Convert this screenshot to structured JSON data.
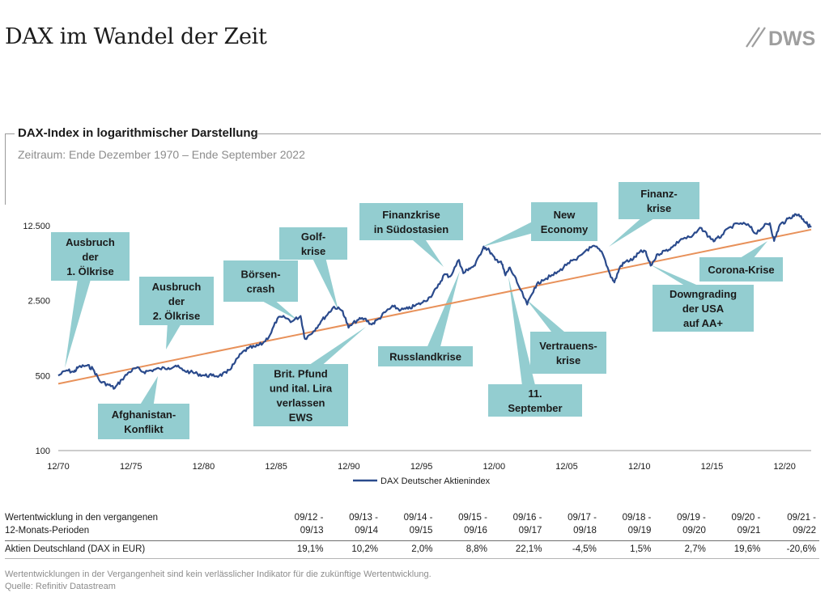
{
  "page": {
    "title": "DAX im Wandel der Zeit",
    "logo_text": "DWS",
    "logo_color": "#9e9e9e"
  },
  "chart_header": {
    "title": "DAX-Index in logarithmischer Darstellung",
    "subtitle": "Zeitraum: Ende Dezember 1970 – Ende September 2022"
  },
  "chart_data": {
    "type": "line",
    "title": "DAX-Index in logarithmischer Darstellung",
    "y_scale": "log",
    "ylim": [
      100,
      12500
    ],
    "y_ticks": [
      {
        "value": 100,
        "label": "100"
      },
      {
        "value": 500,
        "label": "500"
      },
      {
        "value": 2500,
        "label": "2.500"
      },
      {
        "value": 12500,
        "label": "12.500"
      }
    ],
    "x_ticks": [
      "12/70",
      "12/75",
      "12/80",
      "12/85",
      "12/90",
      "12/95",
      "12/00",
      "12/05",
      "12/10",
      "12/15",
      "12/20"
    ],
    "xlim": [
      1970.92,
      2022.75
    ],
    "grid": false,
    "legend_position": "bottom-center",
    "colors": {
      "dax": "#2a4a8c",
      "trend": "#e8915a",
      "callout": "#93cdd0"
    },
    "series": [
      {
        "name": "DAX Deutscher Aktienindex",
        "points": [
          [
            1970.92,
            500
          ],
          [
            1971.5,
            560
          ],
          [
            1972.0,
            540
          ],
          [
            1972.3,
            600
          ],
          [
            1972.9,
            620
          ],
          [
            1973.3,
            580
          ],
          [
            1973.8,
            440
          ],
          [
            1974.4,
            410
          ],
          [
            1974.8,
            380
          ],
          [
            1975.3,
            460
          ],
          [
            1975.8,
            540
          ],
          [
            1976.3,
            590
          ],
          [
            1976.8,
            540
          ],
          [
            1977.3,
            560
          ],
          [
            1977.9,
            580
          ],
          [
            1978.5,
            590
          ],
          [
            1979.0,
            620
          ],
          [
            1979.5,
            560
          ],
          [
            1980.0,
            540
          ],
          [
            1980.5,
            520
          ],
          [
            1981.0,
            500
          ],
          [
            1981.5,
            500
          ],
          [
            1982.0,
            500
          ],
          [
            1982.5,
            530
          ],
          [
            1983.0,
            640
          ],
          [
            1983.5,
            800
          ],
          [
            1984.0,
            900
          ],
          [
            1984.5,
            930
          ],
          [
            1985.0,
            1000
          ],
          [
            1985.5,
            1200
          ],
          [
            1986.0,
            1700
          ],
          [
            1986.5,
            1750
          ],
          [
            1987.0,
            1600
          ],
          [
            1987.6,
            1800
          ],
          [
            1987.9,
            1100
          ],
          [
            1988.5,
            1300
          ],
          [
            1989.0,
            1600
          ],
          [
            1989.5,
            1900
          ],
          [
            1989.9,
            2200
          ],
          [
            1990.5,
            2000
          ],
          [
            1990.9,
            1400
          ],
          [
            1991.5,
            1650
          ],
          [
            1992.0,
            1700
          ],
          [
            1992.5,
            1500
          ],
          [
            1993.0,
            1700
          ],
          [
            1993.5,
            2000
          ],
          [
            1994.0,
            2200
          ],
          [
            1994.5,
            2050
          ],
          [
            1995.0,
            2100
          ],
          [
            1995.5,
            2250
          ],
          [
            1996.0,
            2400
          ],
          [
            1996.5,
            2700
          ],
          [
            1997.0,
            3300
          ],
          [
            1997.5,
            4400
          ],
          [
            1997.9,
            4200
          ],
          [
            1998.5,
            6000
          ],
          [
            1998.8,
            4500
          ],
          [
            1999.2,
            5000
          ],
          [
            1999.6,
            5300
          ],
          [
            2000.2,
            8000
          ],
          [
            2000.6,
            7300
          ],
          [
            2001.0,
            6000
          ],
          [
            2001.4,
            5800
          ],
          [
            2001.7,
            4300
          ],
          [
            2002.0,
            5100
          ],
          [
            2002.5,
            3700
          ],
          [
            2003.2,
            2300
          ],
          [
            2003.7,
            3300
          ],
          [
            2004.2,
            3900
          ],
          [
            2004.8,
            4200
          ],
          [
            2005.4,
            4700
          ],
          [
            2006.0,
            5600
          ],
          [
            2006.6,
            6000
          ],
          [
            2007.3,
            7500
          ],
          [
            2007.9,
            8000
          ],
          [
            2008.4,
            6800
          ],
          [
            2008.9,
            4400
          ],
          [
            2009.2,
            3700
          ],
          [
            2009.6,
            5200
          ],
          [
            2010.0,
            5800
          ],
          [
            2010.5,
            6100
          ],
          [
            2010.9,
            7000
          ],
          [
            2011.3,
            7300
          ],
          [
            2011.7,
            5300
          ],
          [
            2012.2,
            6800
          ],
          [
            2012.7,
            7300
          ],
          [
            2013.2,
            7900
          ],
          [
            2013.8,
            9400
          ],
          [
            2014.5,
            9800
          ],
          [
            2015.2,
            11900
          ],
          [
            2015.7,
            9900
          ],
          [
            2016.1,
            9000
          ],
          [
            2016.6,
            10200
          ],
          [
            2017.2,
            12200
          ],
          [
            2017.9,
            13200
          ],
          [
            2018.5,
            12400
          ],
          [
            2018.9,
            10600
          ],
          [
            2019.5,
            12400
          ],
          [
            2019.9,
            13200
          ],
          [
            2020.2,
            9000
          ],
          [
            2020.6,
            12800
          ],
          [
            2021.0,
            13800
          ],
          [
            2021.5,
            15600
          ],
          [
            2021.9,
            15900
          ],
          [
            2022.2,
            14400
          ],
          [
            2022.5,
            12800
          ],
          [
            2022.75,
            12100
          ]
        ]
      },
      {
        "name": "Trend",
        "points": [
          [
            1970.92,
            420
          ],
          [
            2022.75,
            11500
          ]
        ]
      }
    ]
  },
  "legend": {
    "label": "DAX Deutscher Aktienindex"
  },
  "annotations": [
    {
      "text": [
        "Ausbruch",
        "der",
        "1. Ölkrise"
      ]
    },
    {
      "text": [
        "Ausbruch",
        "der",
        "2. Ölkrise"
      ]
    },
    {
      "text": [
        "Afghanistan-",
        "Konflikt"
      ]
    },
    {
      "text": [
        "Börsen-",
        "crash"
      ]
    },
    {
      "text": [
        "Golf-",
        "krise"
      ]
    },
    {
      "text": [
        "Brit. Pfund",
        "und ital. Lira",
        "verlassen",
        "EWS"
      ]
    },
    {
      "text": [
        "Finanzkrise",
        "in Südostasien"
      ]
    },
    {
      "text": [
        "Russlandkrise"
      ]
    },
    {
      "text": [
        "New",
        "Economy"
      ]
    },
    {
      "text": [
        "11.",
        "September"
      ]
    },
    {
      "text": [
        "Vertrauens-",
        "krise"
      ]
    },
    {
      "text": [
        "Finanz-",
        "krise"
      ]
    },
    {
      "text": [
        "Downgrading",
        "der USA",
        "auf AA+"
      ]
    },
    {
      "text": [
        "Corona-Krise"
      ]
    }
  ],
  "performance_table": {
    "header_label": [
      "Wertentwicklung in den vergangenen",
      "12-Monats-Perioden"
    ],
    "periods": [
      [
        "09/12 -",
        "09/13"
      ],
      [
        "09/13 -",
        "09/14"
      ],
      [
        "09/14 -",
        "09/15"
      ],
      [
        "09/15 -",
        "09/16"
      ],
      [
        "09/16 -",
        "09/17"
      ],
      [
        "09/17 -",
        "09/18"
      ],
      [
        "09/18 -",
        "09/19"
      ],
      [
        "09/19 -",
        "09/20"
      ],
      [
        "09/20 -",
        "09/21"
      ],
      [
        "09/21 -",
        "09/22"
      ]
    ],
    "row_label": "Aktien Deutschland (DAX in EUR)",
    "values": [
      "19,1%",
      "10,2%",
      "2,0%",
      "8,8%",
      "22,1%",
      "-4,5%",
      "1,5%",
      "2,7%",
      "19,6%",
      "-20,6%"
    ]
  },
  "footer": {
    "disclaimer": "Wertentwicklungen in der Vergangenheit sind kein verlässlicher Indikator für die zukünftige Wertentwicklung.",
    "source": "Quelle: Refinitiv Datastream"
  }
}
